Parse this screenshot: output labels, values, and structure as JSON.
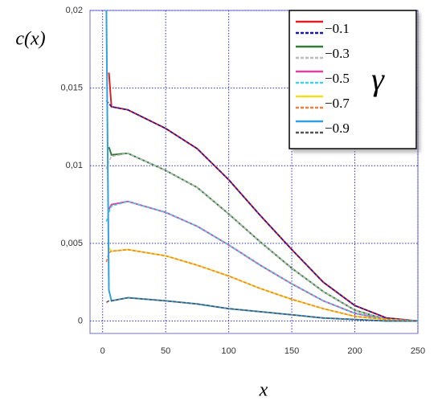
{
  "chart_data": {
    "type": "line",
    "y_label": "c(x)",
    "x_label": "x",
    "legend_title": "γ",
    "x": [
      3,
      5,
      7,
      20,
      50,
      75,
      100,
      125,
      150,
      175,
      200,
      225,
      250
    ],
    "series": [
      {
        "name": "−0.1",
        "color": "#e02020",
        "fit_color": "#1a1aa0",
        "values": [
          null,
          0.016,
          0.0138,
          0.0136,
          0.0124,
          0.0111,
          0.0091,
          0.0068,
          0.0046,
          0.0025,
          0.001,
          0.0002,
          0
        ],
        "fit_values": [
          0.0142,
          0.014,
          0.0138,
          0.0136,
          0.0124,
          0.0111,
          0.0091,
          0.0068,
          0.0046,
          0.0025,
          0.001,
          0.0002,
          0
        ]
      },
      {
        "name": "−0.3",
        "color": "#2e7d32",
        "fit_color": "#bbbbbb",
        "values": [
          null,
          0.0112,
          0.0107,
          0.0108,
          0.0097,
          0.0086,
          0.0069,
          0.0051,
          0.0034,
          0.0019,
          0.0007,
          0.0001,
          0
        ],
        "fit_values": [
          0.0098,
          0.0103,
          0.0106,
          0.0108,
          0.0097,
          0.0086,
          0.0069,
          0.0051,
          0.0034,
          0.0019,
          0.0007,
          0.0001,
          0
        ]
      },
      {
        "name": "−0.5",
        "color": "#e040a0",
        "fit_color": "#40d0e0",
        "values": [
          null,
          0.0072,
          0.0075,
          0.0077,
          0.007,
          0.0061,
          0.0049,
          0.0036,
          0.0024,
          0.0013,
          0.0005,
          0.0001,
          0
        ],
        "fit_values": [
          0.0064,
          0.007,
          0.0074,
          0.0077,
          0.007,
          0.0061,
          0.0049,
          0.0036,
          0.0024,
          0.0013,
          0.0005,
          0.0001,
          0
        ],
        "_": null
      },
      {
        "name": "−0.7",
        "color": "#f0e020",
        "fit_color": "#f08040",
        "values": [
          null,
          0.0047,
          0.0045,
          0.0046,
          0.0042,
          0.0036,
          0.0029,
          0.0021,
          0.0014,
          0.0008,
          0.0003,
          0.0001,
          0
        ],
        "fit_values": [
          0.0038,
          0.0044,
          0.0045,
          0.0046,
          0.0042,
          0.0036,
          0.0029,
          0.0021,
          0.0014,
          0.0008,
          0.0003,
          0.0001,
          0
        ]
      },
      {
        "name": "−0.9",
        "color": "#30a0e0",
        "fit_color": "#555555",
        "values": [
          0.02,
          0.002,
          0.0013,
          0.0015,
          0.0013,
          0.0011,
          0.0008,
          0.0006,
          0.0004,
          0.0002,
          0.0001,
          0,
          0
        ],
        "fit_values": [
          0.0012,
          0.0013,
          0.0013,
          0.0015,
          0.0013,
          0.0011,
          0.0008,
          0.0006,
          0.0004,
          0.0002,
          0.0001,
          0,
          0
        ]
      }
    ],
    "xlim": [
      -10,
      250
    ],
    "ylim": [
      -0.0008,
      0.02
    ],
    "xticks": [
      0,
      50,
      100,
      150,
      200,
      250
    ],
    "yticks": [
      0,
      {
        "value": 0.005,
        "label": "0,005"
      },
      {
        "value": 0.01,
        "label": "0,01"
      },
      {
        "value": 0.015,
        "label": "0,015"
      },
      {
        "value": 0.02,
        "label": "0,02"
      }
    ],
    "grid": true
  }
}
